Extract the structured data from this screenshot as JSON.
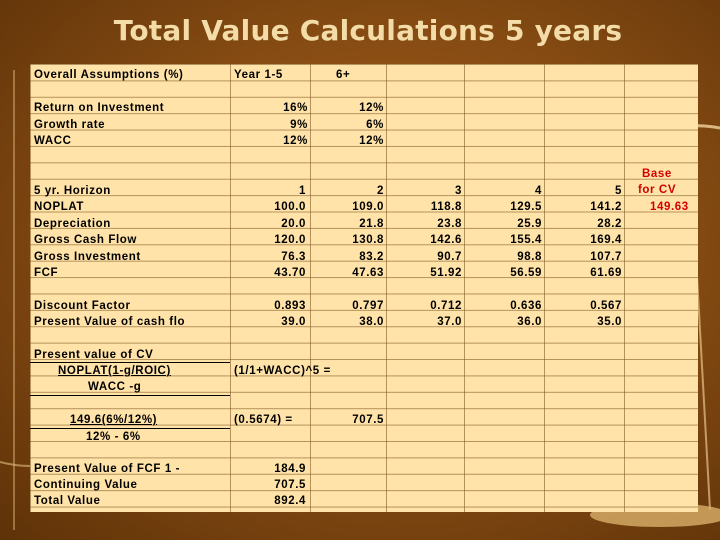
{
  "title": "Total Value Calculations 5 years",
  "assumptions": {
    "header": [
      "Overall Assumptions (%)",
      "Year 1-5",
      "6+"
    ],
    "rows": [
      [
        "Return on Investment",
        "16%",
        "12%"
      ],
      [
        "Growth rate",
        "9%",
        "6%"
      ],
      [
        "WACC",
        "12%",
        "12%"
      ]
    ]
  },
  "base": {
    "line1": "Base",
    "line2": "for CV",
    "value": "149.63"
  },
  "horizon": {
    "header": [
      "5 yr. Horizon",
      "1",
      "2",
      "3",
      "4",
      "5"
    ],
    "rows": [
      [
        "NOPLAT",
        "100.0",
        "109.0",
        "118.8",
        "129.5",
        "141.2"
      ],
      [
        "Depreciation",
        "20.0",
        "21.8",
        "23.8",
        "25.9",
        "28.2"
      ],
      [
        "Gross Cash Flow",
        "120.0",
        "130.8",
        "142.6",
        "155.4",
        "169.4"
      ],
      [
        "Gross Investment",
        "76.3",
        "83.2",
        "90.7",
        "98.8",
        "107.7"
      ],
      [
        "FCF",
        "43.70",
        "47.63",
        "51.92",
        "56.59",
        "61.69"
      ]
    ]
  },
  "discount": {
    "rows": [
      [
        "Discount Factor",
        "0.893",
        "0.797",
        "0.712",
        "0.636",
        "0.567"
      ],
      [
        "Present Value of cash flo",
        "39.0",
        "38.0",
        "37.0",
        "36.0",
        "35.0"
      ]
    ]
  },
  "cv": {
    "heading": "Present value of CV",
    "numerator": "NOPLAT(1-g/ROIC)",
    "factor": "(1/1+WACC)^5  =",
    "denominator": "WACC -g",
    "num2": "149.6(6%/12%)",
    "factor2": "(0.5674) =",
    "result": "707.5",
    "den2": "12% - 6%"
  },
  "totals": {
    "rows": [
      [
        "Present Value of FCF 1 -",
        "184.9"
      ],
      [
        "Continuing Value",
        "707.5"
      ],
      [
        "Total Value",
        "892.4"
      ]
    ]
  },
  "colors": {
    "background": "#8a4e14",
    "sheet": "#ffe3a8",
    "title": "#f3dca8",
    "highlight": "#d40000"
  }
}
